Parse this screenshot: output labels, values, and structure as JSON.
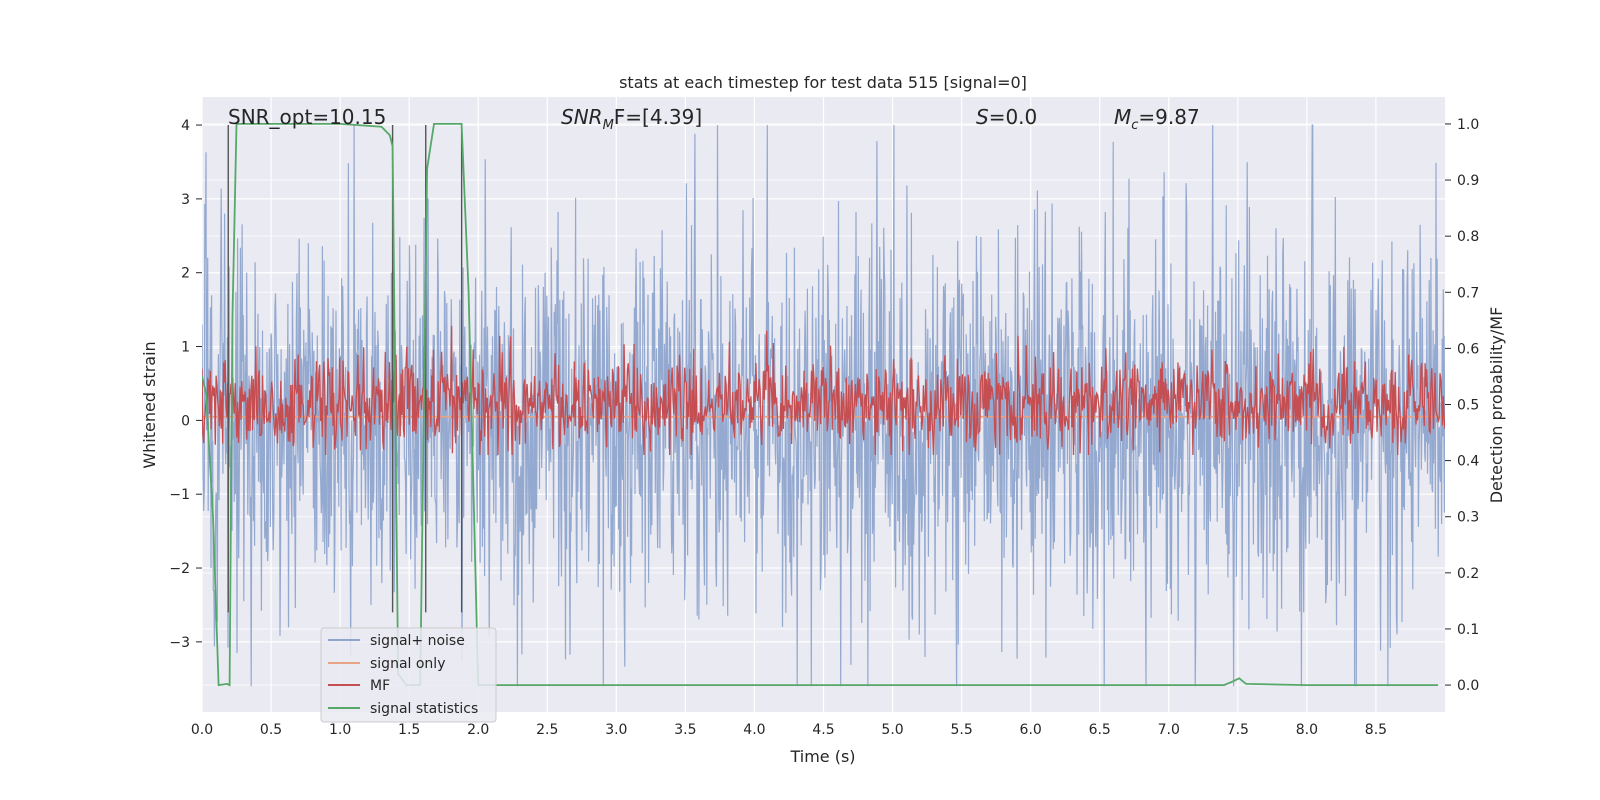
{
  "chart_data": {
    "type": "line",
    "title": "stats at each timestep for test data 515 [signal=0]",
    "xlabel": "Time (s)",
    "ylabel": "Whitened strain",
    "ylabel_right": "Detection probability/MF",
    "xlim": [
      0.0,
      9.0
    ],
    "ylim": [
      -3.95,
      4.38
    ],
    "ylim_right": [
      -0.048,
      1.048
    ],
    "x_ticks": [
      "0.0",
      "0.5",
      "1.0",
      "1.5",
      "2.0",
      "2.5",
      "3.0",
      "3.5",
      "4.0",
      "4.5",
      "5.0",
      "5.5",
      "6.0",
      "6.5",
      "7.0",
      "7.5",
      "8.0",
      "8.5"
    ],
    "y_ticks": [
      "−3",
      "−2",
      "−1",
      "0",
      "1",
      "2",
      "3",
      "4"
    ],
    "y_ticks_right": [
      "0.0",
      "0.1",
      "0.2",
      "0.3",
      "0.4",
      "0.5",
      "0.6",
      "0.7",
      "0.8",
      "0.9",
      "1.0"
    ],
    "annotations": [
      {
        "id": "snr_opt",
        "text": "SNR_opt=10.15"
      },
      {
        "id": "snr_mf",
        "text": "SNR_MF=[4.39]",
        "base": "SNR",
        "sub": "M",
        "tail": "F=[4.39]"
      },
      {
        "id": "s_value",
        "text": "S=0.0",
        "base": "S",
        "tail": "=0.0"
      },
      {
        "id": "mc",
        "text": "M_c=9.87",
        "base": "M",
        "sub": "c",
        "tail": "=9.87"
      }
    ],
    "colors": {
      "noise": "#8fa5cd",
      "signal_only": "#e8a384",
      "mf": "#c44e52",
      "stats": "#55a868",
      "marker": "#555555",
      "axes_bg": "#eaeaf2",
      "grid": "#ffffff"
    },
    "marker_lines_x": [
      0.19,
      1.38,
      1.62,
      1.88
    ],
    "series": [
      {
        "name": "signal+ noise",
        "axis": "left",
        "style": "noise",
        "approx_amplitude": 3.6,
        "x_range": [
          0.0,
          9.0
        ]
      },
      {
        "name": "signal only",
        "axis": "left",
        "style": "flat",
        "approx_value": 0.05,
        "x_range": [
          0.0,
          9.0
        ]
      },
      {
        "name": "MF",
        "axis": "right",
        "style": "noise",
        "approx_mean": 0.5,
        "approx_amplitude": 0.09,
        "x_range": [
          0.0,
          9.0
        ]
      },
      {
        "name": "signal statistics",
        "axis": "right",
        "x": [
          0.0,
          0.03,
          0.08,
          0.12,
          0.18,
          0.2,
          0.22,
          0.25,
          1.0,
          1.3,
          1.36,
          1.38,
          1.42,
          1.48,
          1.58,
          1.63,
          1.68,
          1.88,
          1.93,
          2.0,
          2.1,
          7.4,
          7.46,
          7.51,
          7.56,
          8.0,
          8.95
        ],
        "values": [
          0.55,
          0.52,
          0.3,
          0.0,
          0.002,
          0.0,
          0.65,
          1.0,
          1.0,
          0.995,
          0.98,
          0.96,
          0.02,
          0.0,
          0.0,
          0.92,
          1.0,
          1.0,
          0.7,
          0.0,
          0.0,
          0.0,
          0.006,
          0.012,
          0.002,
          0.0,
          0.0
        ]
      }
    ],
    "legend": {
      "position": "lower-left",
      "entries": [
        "signal+ noise",
        "signal only",
        "MF",
        "signal statistics"
      ]
    }
  }
}
